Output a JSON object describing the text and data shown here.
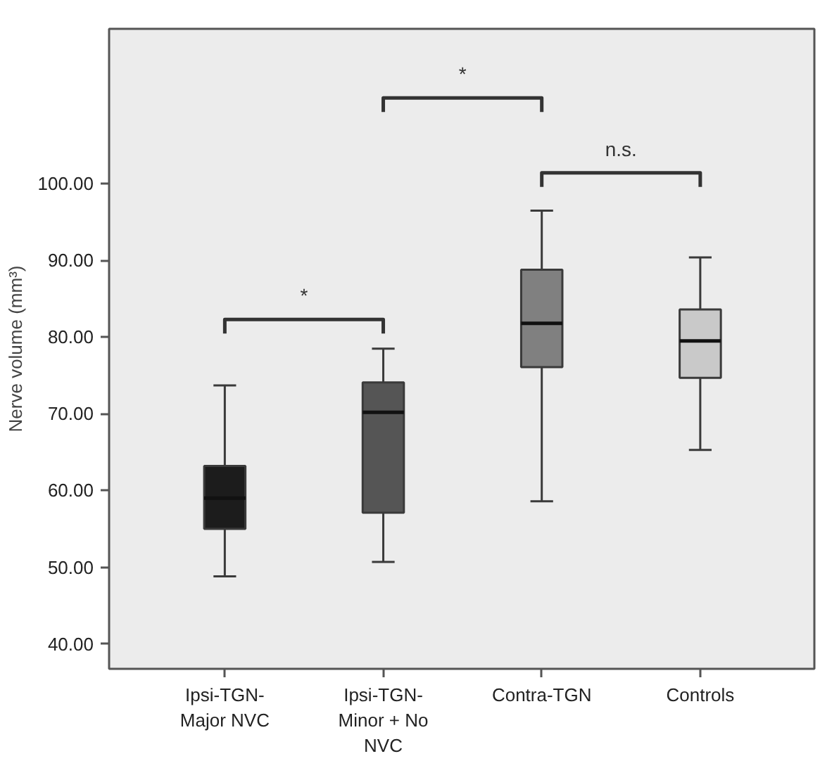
{
  "chart_data": {
    "type": "box",
    "categories": [
      "Ipsi-TGN-\nMajor NVC",
      "Ipsi-TGN-\nMinor + No\nNVC",
      "Contra-TGN",
      "Controls"
    ],
    "ylabel": "Nerve volume (mm³)",
    "colors": [
      "#1c1c1c",
      "#555555",
      "#808080",
      "#c9c9c9"
    ],
    "boxes": [
      {
        "low": 48.8,
        "q1": 55.0,
        "median": 59.0,
        "q3": 63.2,
        "high": 73.7
      },
      {
        "low": 50.7,
        "q1": 57.1,
        "median": 70.2,
        "q3": 74.1,
        "high": 78.5
      },
      {
        "low": 58.6,
        "q1": 76.1,
        "median": 81.8,
        "q3": 88.8,
        "high": 96.5
      },
      {
        "low": 65.3,
        "q1": 74.7,
        "median": 79.5,
        "q3": 83.6,
        "high": 90.4
      }
    ],
    "ylim": [
      36.75,
      120.2
    ],
    "yticks": [
      {
        "value": 40,
        "label": "40.00"
      },
      {
        "value": 50,
        "label": "50.00"
      },
      {
        "value": 60,
        "label": "60.00"
      },
      {
        "value": 70,
        "label": "70.00"
      },
      {
        "value": 80,
        "label": "80.00"
      },
      {
        "value": 90,
        "label": "90.00"
      },
      {
        "value": 100,
        "label": "100.00"
      }
    ],
    "annotations": [
      "*",
      "*",
      "n.s."
    ],
    "grid": false
  }
}
